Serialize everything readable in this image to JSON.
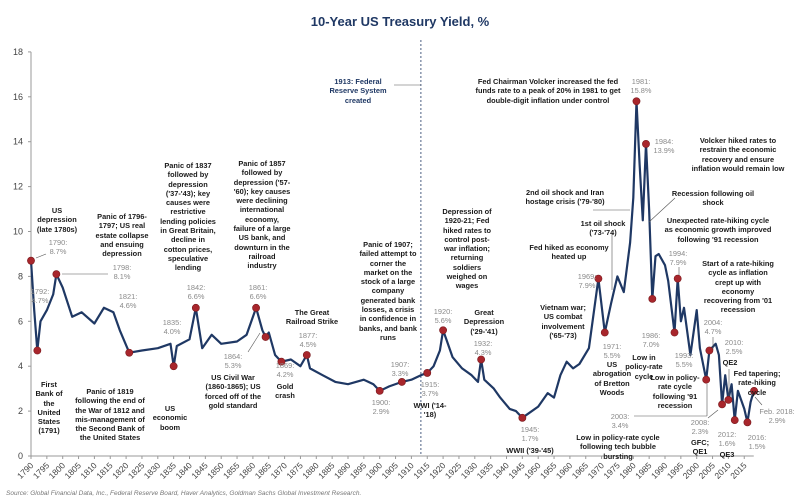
{
  "chart_data": {
    "type": "line",
    "title": "10-Year US Treasury Yield, %",
    "xlabel": "",
    "ylabel": "",
    "xlim": [
      1790,
      2018
    ],
    "ylim": [
      0,
      18
    ],
    "x_ticks": [
      1790,
      1795,
      1800,
      1805,
      1810,
      1815,
      1820,
      1825,
      1830,
      1835,
      1840,
      1845,
      1850,
      1855,
      1860,
      1865,
      1870,
      1875,
      1880,
      1885,
      1890,
      1895,
      1900,
      1905,
      1910,
      1915,
      1920,
      1925,
      1930,
      1935,
      1940,
      1945,
      1950,
      1955,
      1960,
      1965,
      1970,
      1975,
      1980,
      1985,
      1990,
      1995,
      2000,
      2005,
      2010,
      2015
    ],
    "y_ticks": [
      0,
      2,
      4,
      6,
      8,
      10,
      12,
      14,
      16,
      18
    ],
    "grid": false,
    "line_color": "#1f3864",
    "marker_color": "#a8262c",
    "series": [
      {
        "x": [
          1790,
          1791,
          1792,
          1793,
          1795,
          1797,
          1798,
          1800,
          1803,
          1806,
          1810,
          1813,
          1816,
          1818,
          1821,
          1825,
          1830,
          1834,
          1835,
          1836,
          1840,
          1842,
          1844,
          1847,
          1850,
          1855,
          1858,
          1861,
          1863,
          1864,
          1865,
          1867,
          1869,
          1872,
          1875,
          1877,
          1878,
          1882,
          1886,
          1890,
          1895,
          1898,
          1900,
          1903,
          1907,
          1910,
          1913,
          1915,
          1917,
          1919,
          1920,
          1921,
          1923,
          1926,
          1929,
          1931,
          1932,
          1933,
          1936,
          1938,
          1941,
          1943,
          1945,
          1947,
          1950,
          1953,
          1955,
          1957,
          1959,
          1961,
          1963,
          1966,
          1969,
          1971,
          1973,
          1975,
          1977,
          1979,
          1980,
          1981,
          1982,
          1983,
          1984,
          1985,
          1986,
          1987,
          1988,
          1990,
          1991,
          1993,
          1994,
          1995,
          1996,
          1998,
          2000,
          2001,
          2003,
          2004,
          2006,
          2007,
          2008,
          2009,
          2010,
          2011,
          2012,
          2013,
          2014,
          2015,
          2016,
          2017,
          2018
        ],
        "y": [
          8.7,
          6.5,
          4.7,
          6.0,
          6.5,
          7.2,
          8.1,
          7.5,
          6.2,
          6.4,
          5.9,
          6.6,
          6.4,
          5.6,
          4.6,
          4.7,
          4.8,
          5.0,
          4.0,
          4.9,
          5.2,
          6.6,
          4.8,
          5.4,
          5.0,
          5.1,
          5.4,
          6.6,
          5.6,
          5.3,
          5.5,
          4.5,
          4.2,
          4.3,
          4.0,
          4.5,
          3.9,
          3.6,
          3.3,
          3.2,
          3.4,
          3.2,
          2.9,
          3.1,
          3.3,
          3.4,
          3.6,
          3.7,
          4.0,
          4.7,
          5.6,
          5.2,
          4.4,
          3.9,
          3.6,
          3.3,
          4.3,
          3.4,
          3.0,
          2.6,
          2.1,
          2.0,
          1.7,
          1.9,
          2.2,
          2.8,
          2.6,
          3.6,
          4.2,
          3.9,
          4.1,
          4.8,
          7.9,
          5.5,
          6.8,
          8.0,
          7.3,
          9.5,
          11.5,
          15.8,
          13.0,
          10.5,
          13.9,
          11.0,
          7.0,
          8.9,
          9.0,
          8.5,
          7.8,
          5.5,
          7.9,
          6.0,
          6.6,
          4.5,
          6.5,
          4.8,
          3.4,
          4.7,
          5.0,
          4.5,
          2.3,
          3.6,
          2.5,
          3.2,
          1.6,
          2.9,
          2.5,
          2.1,
          1.5,
          2.4,
          2.9
        ]
      }
    ],
    "points": [
      {
        "year": 1790,
        "value": 8.7,
        "label": "1790: 8.7%"
      },
      {
        "year": 1792,
        "value": 4.7,
        "label": "1792: 4.7%"
      },
      {
        "year": 1798,
        "value": 8.1,
        "label": "1798: 8.1%"
      },
      {
        "year": 1821,
        "value": 4.6,
        "label": "1821: 4.6%"
      },
      {
        "year": 1835,
        "value": 4.0,
        "label": "1835: 4.0%"
      },
      {
        "year": 1842,
        "value": 6.6,
        "label": "1842: 6.6%"
      },
      {
        "year": 1861,
        "value": 6.6,
        "label": "1861: 6.6%"
      },
      {
        "year": 1864,
        "value": 5.3,
        "label": "1864: 5.3%"
      },
      {
        "year": 1869,
        "value": 4.2,
        "label": "1869: 4.2%"
      },
      {
        "year": 1877,
        "value": 4.5,
        "label": "1877: 4.5%"
      },
      {
        "year": 1900,
        "value": 2.9,
        "label": "1900: 2.9%"
      },
      {
        "year": 1907,
        "value": 3.3,
        "label": "1907: 3.3%"
      },
      {
        "year": 1915,
        "value": 3.7,
        "label": "1915: 3.7%"
      },
      {
        "year": 1920,
        "value": 5.6,
        "label": "1920: 5.6%"
      },
      {
        "year": 1932,
        "value": 4.3,
        "label": "1932: 4.3%"
      },
      {
        "year": 1945,
        "value": 1.7,
        "label": "1945: 1.7%"
      },
      {
        "year": 1969,
        "value": 7.9,
        "label": "1969: 7.9%"
      },
      {
        "year": 1971,
        "value": 5.5,
        "label": "1971: 5.5%"
      },
      {
        "year": 1981,
        "value": 15.8,
        "label": "1981: 15.8%"
      },
      {
        "year": 1984,
        "value": 13.9,
        "label": "1984: 13.9%"
      },
      {
        "year": 1986,
        "value": 7.0,
        "label": "1986: 7.0%"
      },
      {
        "year": 1993,
        "value": 5.5,
        "label": "1993: 5.5%"
      },
      {
        "year": 1994,
        "value": 7.9,
        "label": "1994: 7.9%"
      },
      {
        "year": 2003,
        "value": 3.4,
        "label": "2003: 3.4%"
      },
      {
        "year": 2004,
        "value": 4.7,
        "label": "2004: 4.7%"
      },
      {
        "year": 2008,
        "value": 2.3,
        "label": "2008: 2.3%"
      },
      {
        "year": 2010,
        "value": 2.5,
        "label": "2010: 2.5%"
      },
      {
        "year": 2012,
        "value": 1.6,
        "label": "2012: 1.6%"
      },
      {
        "year": 2016,
        "value": 1.5,
        "label": "2016: 1.5%"
      },
      {
        "year": 2018.1,
        "value": 2.9,
        "label": "Feb. 2018: 2.9%"
      }
    ],
    "events": [
      "US depression (late 1780s)",
      "Panic of 1796-1797; US real estate collapse and ensuing depression",
      "First Bank of the United States (1791)",
      "Panic of 1819 following the end of the War of 1812 and mis-management of the Second Bank of the United States",
      "US economic boom",
      "Panic of 1837 followed by depression ('37-'43); key causes were restrictive lending policies in Great Britain, decline in cotton prices, speculative lending",
      "US Civil War (1860-1865); US forced off of the gold standard",
      "Panic of 1857 followed by depression ('57-'60); key causes were declining international economy, failure of a large US bank, and downturn in the railroad industry",
      "The Great Railroad Strike",
      "Gold crash",
      "1913: Federal Reserve System created",
      "Panic of 1907; failed attempt to corner the market on the stock of a large company generated bank losses, a crisis in confidence in banks, and bank runs",
      "WWI ('14-'18)",
      "Depression of 1920-21; Fed hiked rates to control post-war inflation; returning soldiers weighed on wages",
      "Great Depression ('29-'41)",
      "WWII ('39-'45)",
      "Vietnam war; US combat involvement ('65-'73)",
      "US abrogation of Bretton Woods",
      "Fed hiked as economy heated up",
      "1st oil shock ('73-'74)",
      "2nd oil shock and Iran hostage crisis ('79-'80)",
      "Fed Chairman Volcker increased the fed funds rate to a peak of 20% in 1981 to get double-digit inflation under control",
      "Volcker hiked rates to restrain the economic recovery and ensure inflation would remain low",
      "Recession following oil shock",
      "Unexpected rate-hiking cycle as economic growth improved following '91 recession",
      "Start of a rate-hiking cycle as inflation crept up with economy recovering from '01 recession",
      "Low in policy-rate cycle",
      "Low in policy-rate cycle following '91 recession",
      "Low in policy-rate cycle following tech bubble bursting",
      "GFC; QE1",
      "QE2",
      "QE3",
      "Fed tapering; rate-hiking cycle"
    ],
    "source": "Source: Global Financial Data, Inc., Federal Reserve Board, Haver Analytics, Goldman Sachs Global Investment Research."
  }
}
